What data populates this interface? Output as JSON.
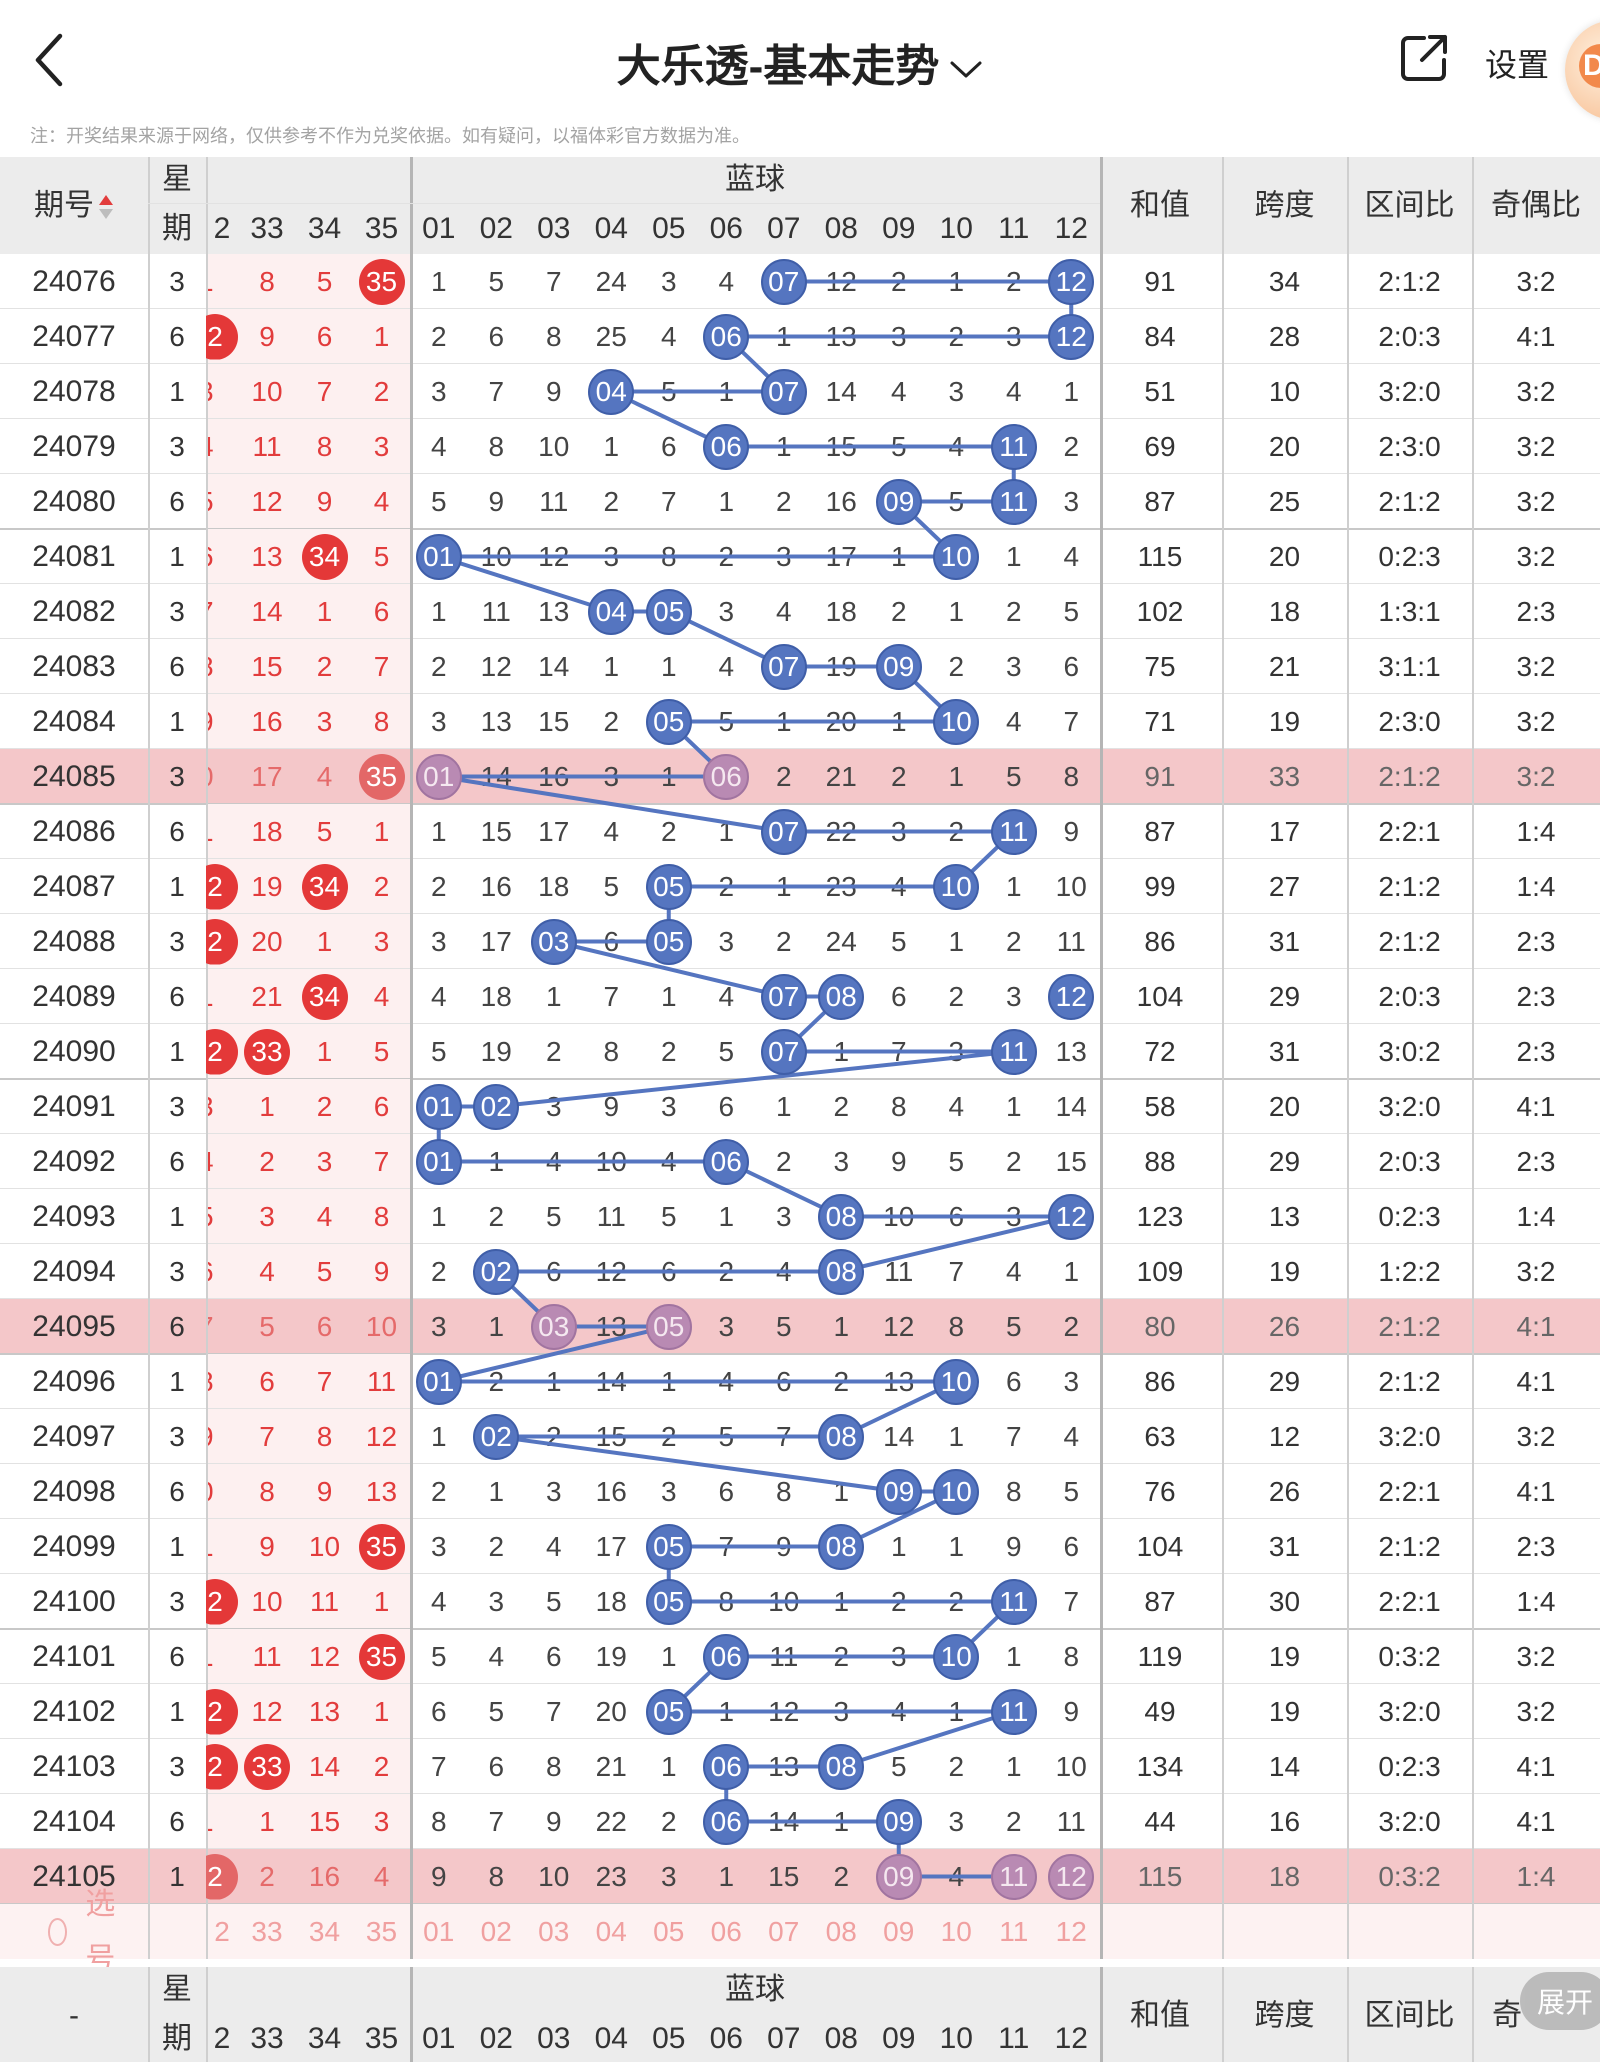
{
  "header": {
    "title": "大乐透-基本走势",
    "settings_label": "设置",
    "avatar_badge": "D",
    "note": "注：开奖结果来源于网络，仅供参考不作为兑奖依据。如有疑问，以福体彩官方数据为准。"
  },
  "table": {
    "col_issue": "期号",
    "col_week_top": "星",
    "col_week_bottom": "期",
    "col_blue_group": "蓝球",
    "col_sum": "和值",
    "col_span": "跨度",
    "col_zone": "区间比",
    "col_oddeven": "奇偶比",
    "red_tail_labels": [
      "2",
      "33",
      "34",
      "35"
    ],
    "blue_labels": [
      "01",
      "02",
      "03",
      "04",
      "05",
      "06",
      "07",
      "08",
      "09",
      "10",
      "11",
      "12"
    ],
    "rows": [
      {
        "issue": "24076",
        "week": "3",
        "red": [
          "1",
          "8",
          "5",
          "35"
        ],
        "blue": [
          "1",
          "5",
          "7",
          "24",
          "3",
          "4",
          "07",
          "12",
          "2",
          "1",
          "2",
          "12"
        ],
        "sum": "91",
        "span": "34",
        "zone": "2:1:2",
        "oe": "3:2"
      },
      {
        "issue": "24077",
        "week": "6",
        "red": [
          "2",
          "9",
          "6",
          "1"
        ],
        "blue": [
          "2",
          "6",
          "8",
          "25",
          "4",
          "06",
          "1",
          "13",
          "3",
          "2",
          "3",
          "12"
        ],
        "sum": "84",
        "span": "28",
        "zone": "2:0:3",
        "oe": "4:1"
      },
      {
        "issue": "24078",
        "week": "1",
        "red": [
          "3",
          "10",
          "7",
          "2"
        ],
        "blue": [
          "3",
          "7",
          "9",
          "04",
          "5",
          "1",
          "07",
          "14",
          "4",
          "3",
          "4",
          "1"
        ],
        "sum": "51",
        "span": "10",
        "zone": "3:2:0",
        "oe": "3:2"
      },
      {
        "issue": "24079",
        "week": "3",
        "red": [
          "4",
          "11",
          "8",
          "3"
        ],
        "blue": [
          "4",
          "8",
          "10",
          "1",
          "6",
          "06",
          "1",
          "15",
          "5",
          "4",
          "11",
          "2"
        ],
        "sum": "69",
        "span": "20",
        "zone": "2:3:0",
        "oe": "3:2"
      },
      {
        "issue": "24080",
        "week": "6",
        "red": [
          "5",
          "12",
          "9",
          "4"
        ],
        "blue": [
          "5",
          "9",
          "11",
          "2",
          "7",
          "1",
          "2",
          "16",
          "09",
          "5",
          "11",
          "3"
        ],
        "sum": "87",
        "span": "25",
        "zone": "2:1:2",
        "oe": "3:2"
      },
      {
        "issue": "24081",
        "week": "1",
        "red": [
          "6",
          "13",
          "34",
          "5"
        ],
        "blue": [
          "01",
          "10",
          "12",
          "3",
          "8",
          "2",
          "3",
          "17",
          "1",
          "10",
          "1",
          "4"
        ],
        "sum": "115",
        "span": "20",
        "zone": "0:2:3",
        "oe": "3:2"
      },
      {
        "issue": "24082",
        "week": "3",
        "red": [
          "7",
          "14",
          "1",
          "6"
        ],
        "blue": [
          "1",
          "11",
          "13",
          "04",
          "05",
          "3",
          "4",
          "18",
          "2",
          "1",
          "2",
          "5"
        ],
        "sum": "102",
        "span": "18",
        "zone": "1:3:1",
        "oe": "2:3"
      },
      {
        "issue": "24083",
        "week": "6",
        "red": [
          "8",
          "15",
          "2",
          "7"
        ],
        "blue": [
          "2",
          "12",
          "14",
          "1",
          "1",
          "4",
          "07",
          "19",
          "09",
          "2",
          "3",
          "6"
        ],
        "sum": "75",
        "span": "21",
        "zone": "3:1:1",
        "oe": "3:2"
      },
      {
        "issue": "24084",
        "week": "1",
        "red": [
          "9",
          "16",
          "3",
          "8"
        ],
        "blue": [
          "3",
          "13",
          "15",
          "2",
          "05",
          "5",
          "1",
          "20",
          "1",
          "10",
          "4",
          "7"
        ],
        "sum": "71",
        "span": "19",
        "zone": "2:3:0",
        "oe": "3:2"
      },
      {
        "issue": "24085",
        "week": "3",
        "red": [
          "0",
          "17",
          "4",
          "35"
        ],
        "blue": [
          "01",
          "14",
          "16",
          "3",
          "1",
          "06",
          "2",
          "21",
          "2",
          "1",
          "5",
          "8"
        ],
        "sum": "91",
        "span": "33",
        "zone": "2:1:2",
        "oe": "3:2"
      },
      {
        "issue": "24086",
        "week": "6",
        "red": [
          "1",
          "18",
          "5",
          "1"
        ],
        "blue": [
          "1",
          "15",
          "17",
          "4",
          "2",
          "1",
          "07",
          "22",
          "3",
          "2",
          "11",
          "9"
        ],
        "sum": "87",
        "span": "17",
        "zone": "2:2:1",
        "oe": "1:4"
      },
      {
        "issue": "24087",
        "week": "1",
        "red": [
          "2",
          "19",
          "34",
          "2"
        ],
        "blue": [
          "2",
          "16",
          "18",
          "5",
          "05",
          "2",
          "1",
          "23",
          "4",
          "10",
          "1",
          "10"
        ],
        "sum": "99",
        "span": "27",
        "zone": "2:1:2",
        "oe": "1:4"
      },
      {
        "issue": "24088",
        "week": "3",
        "red": [
          "2",
          "20",
          "1",
          "3"
        ],
        "blue": [
          "3",
          "17",
          "03",
          "6",
          "05",
          "3",
          "2",
          "24",
          "5",
          "1",
          "2",
          "11"
        ],
        "sum": "86",
        "span": "31",
        "zone": "2:1:2",
        "oe": "2:3"
      },
      {
        "issue": "24089",
        "week": "6",
        "red": [
          "1",
          "21",
          "34",
          "4"
        ],
        "blue": [
          "4",
          "18",
          "1",
          "7",
          "1",
          "4",
          "07",
          "08",
          "6",
          "2",
          "3",
          "12"
        ],
        "sum": "104",
        "span": "29",
        "zone": "2:0:3",
        "oe": "2:3"
      },
      {
        "issue": "24090",
        "week": "1",
        "red": [
          "2",
          "33",
          "1",
          "5"
        ],
        "blue": [
          "5",
          "19",
          "2",
          "8",
          "2",
          "5",
          "07",
          "1",
          "7",
          "3",
          "11",
          "13"
        ],
        "sum": "72",
        "span": "31",
        "zone": "3:0:2",
        "oe": "2:3"
      },
      {
        "issue": "24091",
        "week": "3",
        "red": [
          "3",
          "1",
          "2",
          "6"
        ],
        "blue": [
          "01",
          "02",
          "3",
          "9",
          "3",
          "6",
          "1",
          "2",
          "8",
          "4",
          "1",
          "14"
        ],
        "sum": "58",
        "span": "20",
        "zone": "3:2:0",
        "oe": "4:1"
      },
      {
        "issue": "24092",
        "week": "6",
        "red": [
          "4",
          "2",
          "3",
          "7"
        ],
        "blue": [
          "01",
          "1",
          "4",
          "10",
          "4",
          "06",
          "2",
          "3",
          "9",
          "5",
          "2",
          "15"
        ],
        "sum": "88",
        "span": "29",
        "zone": "2:0:3",
        "oe": "2:3"
      },
      {
        "issue": "24093",
        "week": "1",
        "red": [
          "5",
          "3",
          "4",
          "8"
        ],
        "blue": [
          "1",
          "2",
          "5",
          "11",
          "5",
          "1",
          "3",
          "08",
          "10",
          "6",
          "3",
          "12"
        ],
        "sum": "123",
        "span": "13",
        "zone": "0:2:3",
        "oe": "1:4"
      },
      {
        "issue": "24094",
        "week": "3",
        "red": [
          "6",
          "4",
          "5",
          "9"
        ],
        "blue": [
          "2",
          "02",
          "6",
          "12",
          "6",
          "2",
          "4",
          "08",
          "11",
          "7",
          "4",
          "1"
        ],
        "sum": "109",
        "span": "19",
        "zone": "1:2:2",
        "oe": "3:2"
      },
      {
        "issue": "24095",
        "week": "6",
        "red": [
          "7",
          "5",
          "6",
          "10"
        ],
        "blue": [
          "3",
          "1",
          "03",
          "13",
          "05",
          "3",
          "5",
          "1",
          "12",
          "8",
          "5",
          "2"
        ],
        "sum": "80",
        "span": "26",
        "zone": "2:1:2",
        "oe": "4:1"
      },
      {
        "issue": "24096",
        "week": "1",
        "red": [
          "8",
          "6",
          "7",
          "11"
        ],
        "blue": [
          "01",
          "2",
          "1",
          "14",
          "1",
          "4",
          "6",
          "2",
          "13",
          "10",
          "6",
          "3"
        ],
        "sum": "86",
        "span": "29",
        "zone": "2:1:2",
        "oe": "4:1"
      },
      {
        "issue": "24097",
        "week": "3",
        "red": [
          "9",
          "7",
          "8",
          "12"
        ],
        "blue": [
          "1",
          "02",
          "2",
          "15",
          "2",
          "5",
          "7",
          "08",
          "14",
          "1",
          "7",
          "4"
        ],
        "sum": "63",
        "span": "12",
        "zone": "3:2:0",
        "oe": "3:2"
      },
      {
        "issue": "24098",
        "week": "6",
        "red": [
          "0",
          "8",
          "9",
          "13"
        ],
        "blue": [
          "2",
          "1",
          "3",
          "16",
          "3",
          "6",
          "8",
          "1",
          "09",
          "10",
          "8",
          "5"
        ],
        "sum": "76",
        "span": "26",
        "zone": "2:2:1",
        "oe": "4:1"
      },
      {
        "issue": "24099",
        "week": "1",
        "red": [
          "1",
          "9",
          "10",
          "35"
        ],
        "blue": [
          "3",
          "2",
          "4",
          "17",
          "05",
          "7",
          "9",
          "08",
          "1",
          "1",
          "9",
          "6"
        ],
        "sum": "104",
        "span": "31",
        "zone": "2:1:2",
        "oe": "2:3"
      },
      {
        "issue": "24100",
        "week": "3",
        "red": [
          "2",
          "10",
          "11",
          "1"
        ],
        "blue": [
          "4",
          "3",
          "5",
          "18",
          "05",
          "8",
          "10",
          "1",
          "2",
          "2",
          "11",
          "7"
        ],
        "sum": "87",
        "span": "30",
        "zone": "2:2:1",
        "oe": "1:4"
      },
      {
        "issue": "24101",
        "week": "6",
        "red": [
          "1",
          "11",
          "12",
          "35"
        ],
        "blue": [
          "5",
          "4",
          "6",
          "19",
          "1",
          "06",
          "11",
          "2",
          "3",
          "10",
          "1",
          "8"
        ],
        "sum": "119",
        "span": "19",
        "zone": "0:3:2",
        "oe": "3:2"
      },
      {
        "issue": "24102",
        "week": "1",
        "red": [
          "2",
          "12",
          "13",
          "1"
        ],
        "blue": [
          "6",
          "5",
          "7",
          "20",
          "05",
          "1",
          "12",
          "3",
          "4",
          "1",
          "11",
          "9"
        ],
        "sum": "49",
        "span": "19",
        "zone": "3:2:0",
        "oe": "3:2"
      },
      {
        "issue": "24103",
        "week": "3",
        "red": [
          "2",
          "33",
          "14",
          "2"
        ],
        "blue": [
          "7",
          "6",
          "8",
          "21",
          "1",
          "06",
          "13",
          "08",
          "5",
          "2",
          "1",
          "10"
        ],
        "sum": "134",
        "span": "14",
        "zone": "0:2:3",
        "oe": "4:1"
      },
      {
        "issue": "24104",
        "week": "6",
        "red": [
          "1",
          "1",
          "15",
          "3"
        ],
        "blue": [
          "8",
          "7",
          "9",
          "22",
          "2",
          "06",
          "14",
          "1",
          "09",
          "3",
          "2",
          "11"
        ],
        "sum": "44",
        "span": "16",
        "zone": "3:2:0",
        "oe": "4:1"
      },
      {
        "issue": "24105",
        "week": "1",
        "red": [
          "2",
          "2",
          "16",
          "4"
        ],
        "blue": [
          "9",
          "8",
          "10",
          "23",
          "3",
          "1",
          "15",
          "2",
          "09",
          "4",
          "11",
          "12"
        ],
        "sum": "115",
        "span": "18",
        "zone": "0:3:2",
        "oe": "1:4"
      }
    ],
    "select_label": "选号",
    "footer_issue": "-",
    "footer_oddeven_partial": "奇",
    "expand_label": "展开"
  },
  "colors": {
    "red_ball": "#e43838",
    "blue_ball": "#5575c0",
    "highlight_row": "#f4c7c9",
    "line": "#5575c0"
  }
}
